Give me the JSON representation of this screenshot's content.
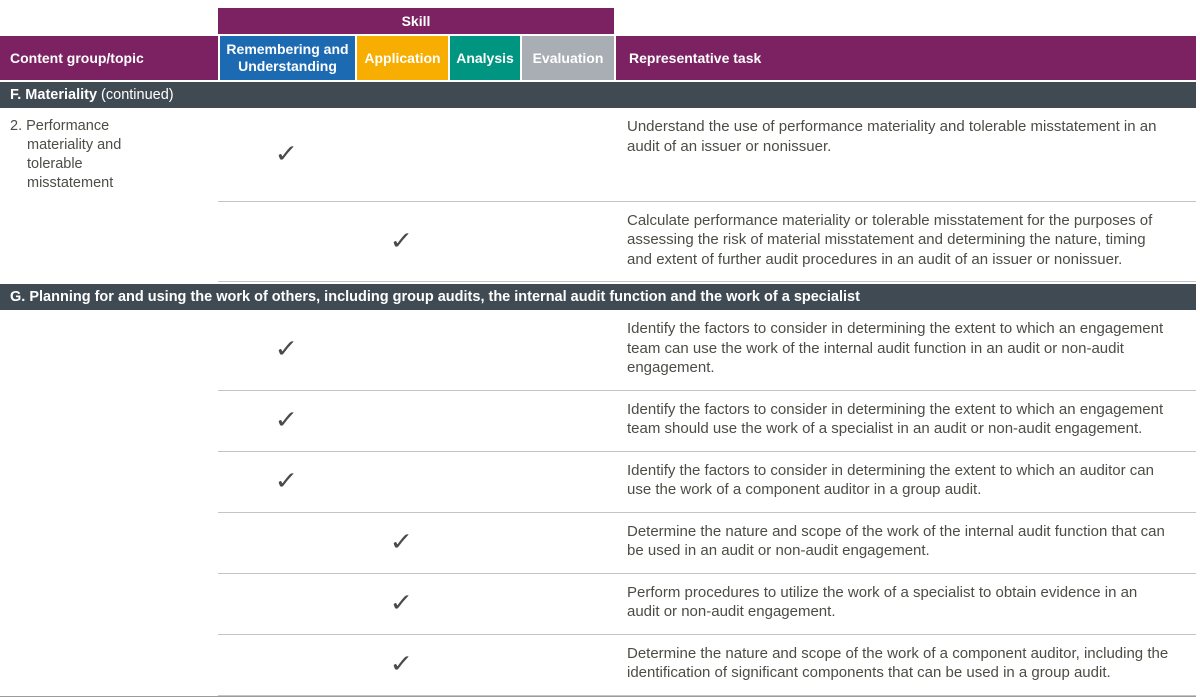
{
  "header": {
    "skill_label": "Skill",
    "content_col": "Content group/topic",
    "task_col": "Representative task",
    "skills": [
      {
        "label": "Remembering and Understanding",
        "color": "#1c6bb2"
      },
      {
        "label": "Application",
        "color": "#f7ae00"
      },
      {
        "label": "Analysis",
        "color": "#009580"
      },
      {
        "label": "Evaluation",
        "color": "#a9aeb4"
      }
    ]
  },
  "colors": {
    "header_purple": "#7c2162",
    "section_slate": "#404a53",
    "body_text": "#4c4d45",
    "checkmark": "#4b4b4b"
  },
  "icons": {
    "check": "✓"
  },
  "sections": [
    {
      "title": "F. Materiality",
      "title_suffix": " (continued)",
      "rows": [
        {
          "topic": "2. Performance materiality and tolerable misstatement",
          "skill": "Remembering and Understanding",
          "task": "Understand the use of performance materiality and tolerable misstatement in an audit of an issuer or nonissuer."
        },
        {
          "topic": "",
          "skill": "Application",
          "task": "Calculate performance materiality or tolerable misstatement for the purposes of assessing the risk of material misstatement and determining the nature, timing and extent of further audit procedures in an audit of an issuer or nonissuer."
        }
      ]
    },
    {
      "title": "G. Planning for and using the work of others, including group audits, the internal audit function and the work of a specialist",
      "title_suffix": "",
      "rows": [
        {
          "topic": "",
          "skill": "Remembering and Understanding",
          "task": "Identify the factors to consider in determining the extent to which an engagement team can use the work of the internal audit function in an audit or non-audit engagement."
        },
        {
          "topic": "",
          "skill": "Remembering and Understanding",
          "task": "Identify the factors to consider in determining the extent to which an engagement team should use the work of a specialist in an audit or non-audit engagement."
        },
        {
          "topic": "",
          "skill": "Remembering and Understanding",
          "task": "Identify the factors to consider in determining the extent to which an auditor can use the work of a component auditor in a group audit."
        },
        {
          "topic": "",
          "skill": "Application",
          "task": "Determine the nature and scope of the work of the internal audit function that can be used in an audit or non-audit engagement."
        },
        {
          "topic": "",
          "skill": "Application",
          "task": "Perform procedures to utilize the work of a specialist to obtain evidence in an audit or non-audit engagement."
        },
        {
          "topic": "",
          "skill": "Application",
          "task": "Determine the nature and scope of the work of a component auditor, including the identification of significant components that can be used in a group audit."
        }
      ]
    }
  ]
}
